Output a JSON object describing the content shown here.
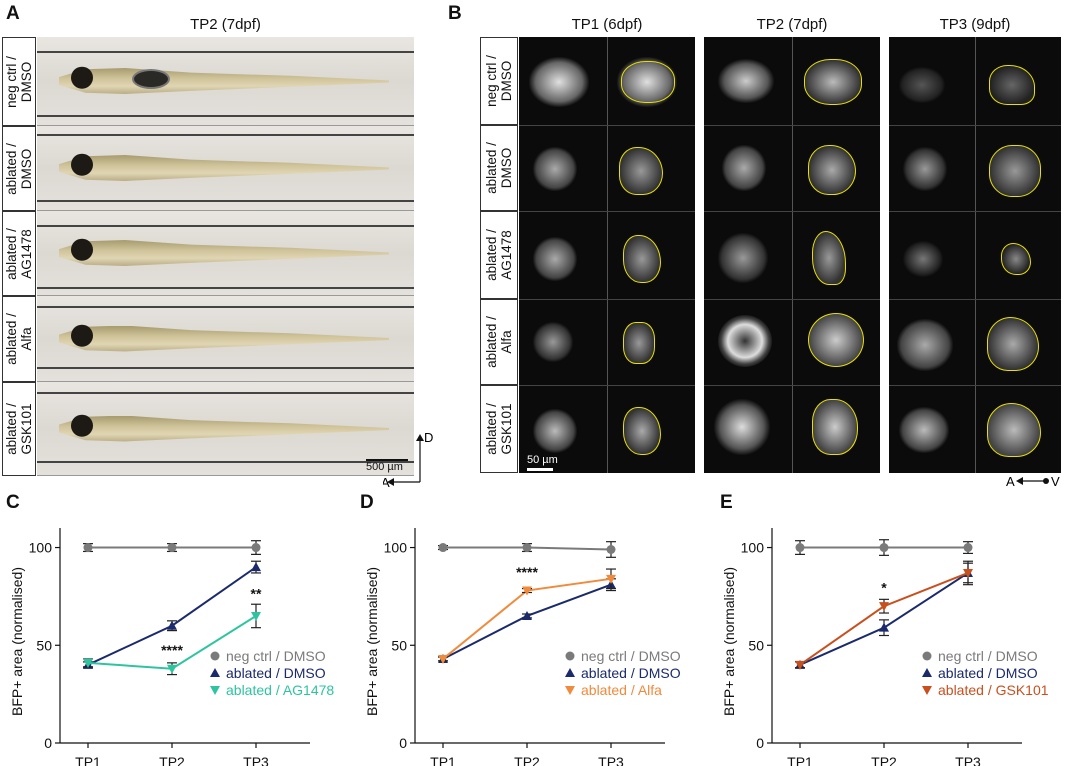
{
  "panel_a": {
    "label": "A",
    "title": "TP2 (7dpf)",
    "rows": [
      "neg ctrl /\nDMSO",
      "ablated /\nDMSO",
      "ablated /\nAG1478",
      "ablated /\nAlfa",
      "ablated /\nGSK101"
    ],
    "scale_bar": "500 µm",
    "axis_d": "D",
    "axis_a": "A"
  },
  "panel_b": {
    "label": "B",
    "columns": [
      "TP1 (6dpf)",
      "TP2 (7dpf)",
      "TP3 (9dpf)"
    ],
    "rows": [
      "neg ctrl /\nDMSO",
      "ablated /\nDMSO",
      "ablated /\nAG1478",
      "ablated /\nAlfa",
      "ablated /\nGSK101"
    ],
    "scale_bar": "50 µm",
    "axis_a": "A",
    "axis_v": "V"
  },
  "colors": {
    "neg_ctrl": "#7a7a7a",
    "ablated_dmso": "#1b2a6b",
    "ag1478": "#2ec4a0",
    "alfa": "#f08a3c",
    "gsk101": "#c8501e"
  },
  "chart_data": [
    {
      "type": "line",
      "label": "C",
      "title": "",
      "categories": [
        "TP1",
        "TP2",
        "TP3"
      ],
      "ylabel": "BFP+ area (normalised)",
      "ylim": [
        0,
        110
      ],
      "yticks": [
        "0",
        "50",
        "100"
      ],
      "series": [
        {
          "name": "neg ctrl / DMSO",
          "values": [
            100,
            100,
            100
          ],
          "err": [
            2,
            2,
            3.5
          ],
          "marker": "circle",
          "colorKey": "neg_ctrl"
        },
        {
          "name": "ablated / DMSO",
          "values": [
            40,
            60,
            90
          ],
          "err": [
            1.5,
            2.5,
            3
          ],
          "marker": "tri-up",
          "colorKey": "ablated_dmso"
        },
        {
          "name": "ablated / AG1478",
          "values": [
            41,
            38,
            65
          ],
          "err": [
            2,
            3,
            6
          ],
          "marker": "tri-down",
          "colorKey": "ag1478"
        }
      ],
      "annotations": [
        {
          "cat": 1,
          "y": 45,
          "text": "****"
        },
        {
          "cat": 2,
          "y": 74,
          "text": "**"
        }
      ]
    },
    {
      "type": "line",
      "label": "D",
      "title": "",
      "categories": [
        "TP1",
        "TP2",
        "TP3"
      ],
      "ylabel": "BFP+ area (normalised)",
      "ylim": [
        0,
        110
      ],
      "yticks": [
        "0",
        "50",
        "100"
      ],
      "series": [
        {
          "name": "neg ctrl / DMSO",
          "values": [
            100,
            100,
            99
          ],
          "err": [
            1,
            2,
            4
          ],
          "marker": "circle",
          "colorKey": "neg_ctrl"
        },
        {
          "name": "ablated / DMSO",
          "values": [
            43,
            65,
            81
          ],
          "err": [
            1,
            1,
            3
          ],
          "marker": "tri-up",
          "colorKey": "ablated_dmso"
        },
        {
          "name": "ablated / Alfa",
          "values": [
            43,
            78,
            84
          ],
          "err": [
            1,
            1,
            5
          ],
          "marker": "tri-down",
          "colorKey": "alfa"
        }
      ],
      "annotations": [
        {
          "cat": 1,
          "y": 85,
          "text": "****"
        }
      ]
    },
    {
      "type": "line",
      "label": "E",
      "title": "",
      "categories": [
        "TP1",
        "TP2",
        "TP3"
      ],
      "ylabel": "BFP+ area (normalised)",
      "ylim": [
        0,
        110
      ],
      "yticks": [
        "0",
        "50",
        "100"
      ],
      "series": [
        {
          "name": "neg ctrl / DMSO",
          "values": [
            100,
            100,
            100
          ],
          "err": [
            3.5,
            4,
            3
          ],
          "marker": "circle",
          "colorKey": "neg_ctrl"
        },
        {
          "name": "ablated / DMSO",
          "values": [
            40,
            59,
            87
          ],
          "err": [
            1.5,
            4,
            5
          ],
          "marker": "tri-up",
          "colorKey": "ablated_dmso"
        },
        {
          "name": "ablated / GSK101",
          "values": [
            40,
            70,
            87
          ],
          "err": [
            1.5,
            3.5,
            6
          ],
          "marker": "tri-down",
          "colorKey": "gsk101"
        }
      ],
      "annotations": [
        {
          "cat": 1,
          "y": 77,
          "text": "*"
        }
      ]
    }
  ]
}
